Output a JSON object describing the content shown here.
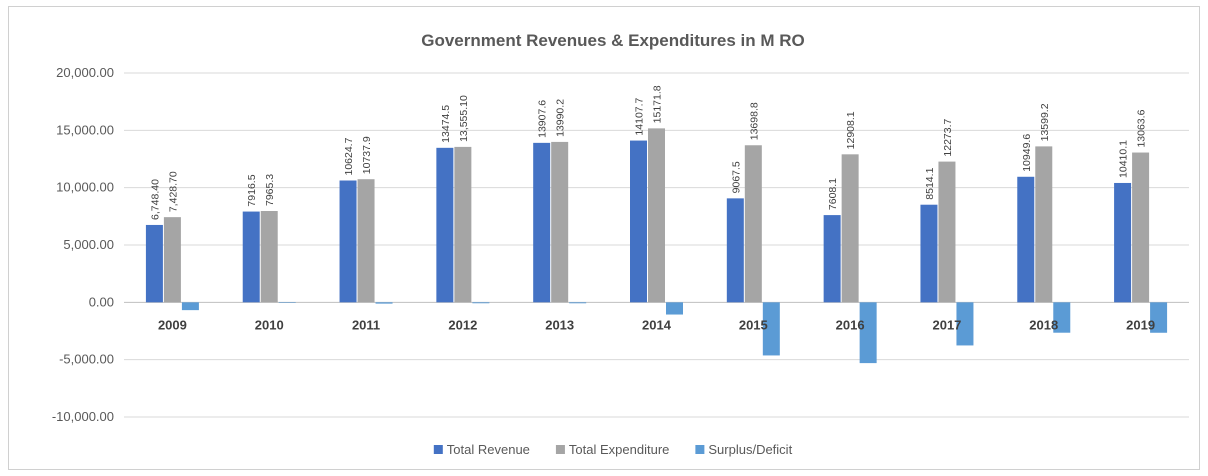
{
  "chart_data": {
    "type": "bar",
    "title": "Government Revenues & Expenditures in M RO",
    "xlabel": "",
    "ylabel": "",
    "ylim": [
      -10000,
      20000
    ],
    "yticks": [
      20000,
      15000,
      10000,
      5000,
      0,
      -5000,
      -10000
    ],
    "ytick_labels": [
      "20,000.00",
      "15,000.00",
      "10,000.00",
      "5,000.00",
      "0.00",
      "-5,000.00",
      "-10,000.00"
    ],
    "grid": true,
    "legend": "bottom",
    "categories": [
      "2009",
      "2010",
      "2011",
      "2012",
      "2013",
      "2014",
      "2015",
      "2016",
      "2017",
      "2018",
      "2019"
    ],
    "series": [
      {
        "name": "Total Revenue",
        "color": "#4472c4",
        "values": [
          6748.4,
          7916.5,
          10624.7,
          13474.5,
          13907.6,
          14107.7,
          9067.5,
          7608.1,
          8514.1,
          10949.6,
          10410.1
        ],
        "labels": [
          "6,748.40",
          "7916.5",
          "10624.7",
          "13474.5",
          "13907.6",
          "14107.7",
          "9067.5",
          "7608.1",
          "8514.1",
          "10949.6",
          "10410.1"
        ]
      },
      {
        "name": "Total Expenditure",
        "color": "#a5a5a5",
        "values": [
          7428.7,
          7965.3,
          10737.9,
          13555.1,
          13990.2,
          15171.8,
          13698.8,
          12908.1,
          12273.7,
          13599.2,
          13063.6
        ],
        "labels": [
          "7,428.70",
          "7965.3",
          "10737.9",
          "13,555.10",
          "13990.2",
          "15171.8",
          "13698.8",
          "12908.1",
          "12273.7",
          "13599.2",
          "13063.6"
        ]
      },
      {
        "name": "Surplus/Deficit",
        "color": "#5b9bd5",
        "values": [
          -680.3,
          -48.8,
          -113.2,
          -80.6,
          -82.6,
          -1064.1,
          -4631.3,
          -5300,
          -3759.6,
          -2649.6,
          -2653.5
        ],
        "labels": []
      }
    ]
  }
}
